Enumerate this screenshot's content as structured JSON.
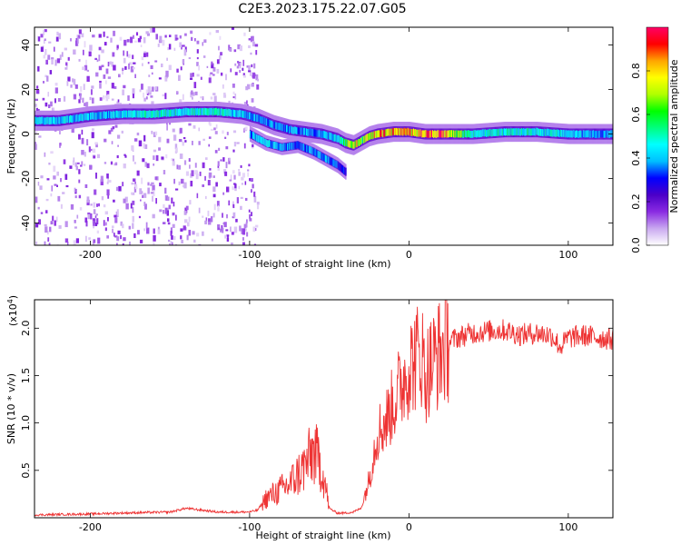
{
  "figure": {
    "title": "C2E3.2023.175.22.07.G05"
  },
  "colorbar": {
    "label": "Normalized spectral amplitude",
    "ticks": [
      "0.0",
      "0.2",
      "0.4",
      "0.6",
      "0.8"
    ],
    "tick_values": [
      0.0,
      0.2,
      0.4,
      0.6,
      0.8
    ],
    "range": [
      0,
      1
    ],
    "colormap": [
      "#ffffff",
      "#c9a8f0",
      "#8a2be2",
      "#4b00c8",
      "#0000ff",
      "#00bfff",
      "#00ffff",
      "#00ff80",
      "#00ff00",
      "#b0ff00",
      "#ffff00",
      "#ffa500",
      "#ff0000",
      "#ff0066"
    ]
  },
  "chart_data": [
    {
      "type": "heatmap",
      "title": "",
      "xlabel": "Height of straight line (km)",
      "ylabel": "Frequency (Hz)",
      "xlim": [
        -235,
        128
      ],
      "ylim": [
        -50,
        48
      ],
      "xticks": [
        -200,
        -100,
        0,
        100
      ],
      "xtick_labels": [
        "-200",
        "-100",
        "0",
        "100"
      ],
      "yticks": [
        -40,
        -20,
        0,
        20,
        40
      ],
      "ytick_labels": [
        "-40",
        "-20",
        "0",
        "20",
        "40"
      ],
      "ridge": {
        "name": "main",
        "x": [
          -235,
          -220,
          -200,
          -180,
          -160,
          -140,
          -120,
          -105,
          -95,
          -85,
          -75,
          -65,
          -55,
          -45,
          -40,
          -35,
          -30,
          -25,
          -20,
          -10,
          0,
          10,
          20,
          40,
          60,
          80,
          100,
          128
        ],
        "y": [
          6,
          6,
          8,
          9,
          9,
          10,
          10,
          9,
          7,
          4,
          2,
          1,
          0,
          -2,
          -4,
          -5,
          -3,
          -1,
          0,
          1,
          1,
          0,
          0,
          0,
          1,
          1,
          0,
          0
        ],
        "amplitude": [
          0.45,
          0.45,
          0.45,
          0.45,
          0.5,
          0.5,
          0.5,
          0.45,
          0.4,
          0.4,
          0.4,
          0.4,
          0.4,
          0.45,
          0.6,
          0.85,
          0.7,
          0.75,
          0.9,
          0.85,
          0.85,
          0.95,
          0.95,
          0.5,
          0.5,
          0.5,
          0.45,
          0.4
        ]
      },
      "branch": {
        "name": "secondary",
        "x": [
          -100,
          -90,
          -80,
          -70,
          -60,
          -50,
          -45,
          -40
        ],
        "y": [
          0,
          -4,
          -6,
          -5,
          -8,
          -12,
          -14,
          -17
        ],
        "amplitude": [
          0.4,
          0.45,
          0.4,
          0.35,
          0.4,
          0.4,
          0.35,
          0.3
        ]
      },
      "noise_region_x": [
        -235,
        -95
      ]
    },
    {
      "type": "line",
      "title": "",
      "xlabel": "Height of straight line (km)",
      "ylabel": "SNR (10 * v/v)",
      "y_multiplier": "(x10",
      "y_multiplier_exp": "4",
      "y_multiplier_close": ")",
      "xlim": [
        -235,
        128
      ],
      "ylim": [
        0,
        2.3
      ],
      "xticks": [
        -200,
        -100,
        0,
        100
      ],
      "xtick_labels": [
        "-200",
        "-100",
        "0",
        "100"
      ],
      "yticks": [
        0.5,
        1.0,
        1.5,
        2.0
      ],
      "ytick_labels": [
        "0.5",
        "1.0",
        "1.5",
        "2.0"
      ],
      "color": "#ee3333",
      "series": [
        {
          "x": [
            -235,
            -200,
            -180,
            -150,
            -140,
            -120,
            -100,
            -95,
            -90,
            -80,
            -75,
            -70,
            -65,
            -60,
            -55,
            -52,
            -50,
            -45,
            -40,
            -35,
            -30,
            -25,
            -20,
            -15,
            -10,
            -5,
            0,
            5,
            8,
            10,
            15,
            20,
            25,
            30,
            40,
            50,
            60,
            70,
            80,
            90,
            95,
            100,
            110,
            120,
            128
          ],
          "y": [
            0.03,
            0.04,
            0.05,
            0.06,
            0.1,
            0.06,
            0.06,
            0.08,
            0.2,
            0.3,
            0.35,
            0.45,
            0.55,
            0.7,
            0.55,
            0.3,
            0.1,
            0.05,
            0.05,
            0.06,
            0.1,
            0.4,
            0.9,
            1.0,
            1.2,
            1.4,
            1.6,
            1.7,
            1.75,
            1.5,
            1.65,
            1.75,
            1.85,
            1.9,
            1.95,
            1.97,
            1.98,
            1.93,
            1.95,
            1.92,
            1.8,
            1.9,
            1.92,
            1.9,
            1.88
          ]
        }
      ]
    }
  ]
}
